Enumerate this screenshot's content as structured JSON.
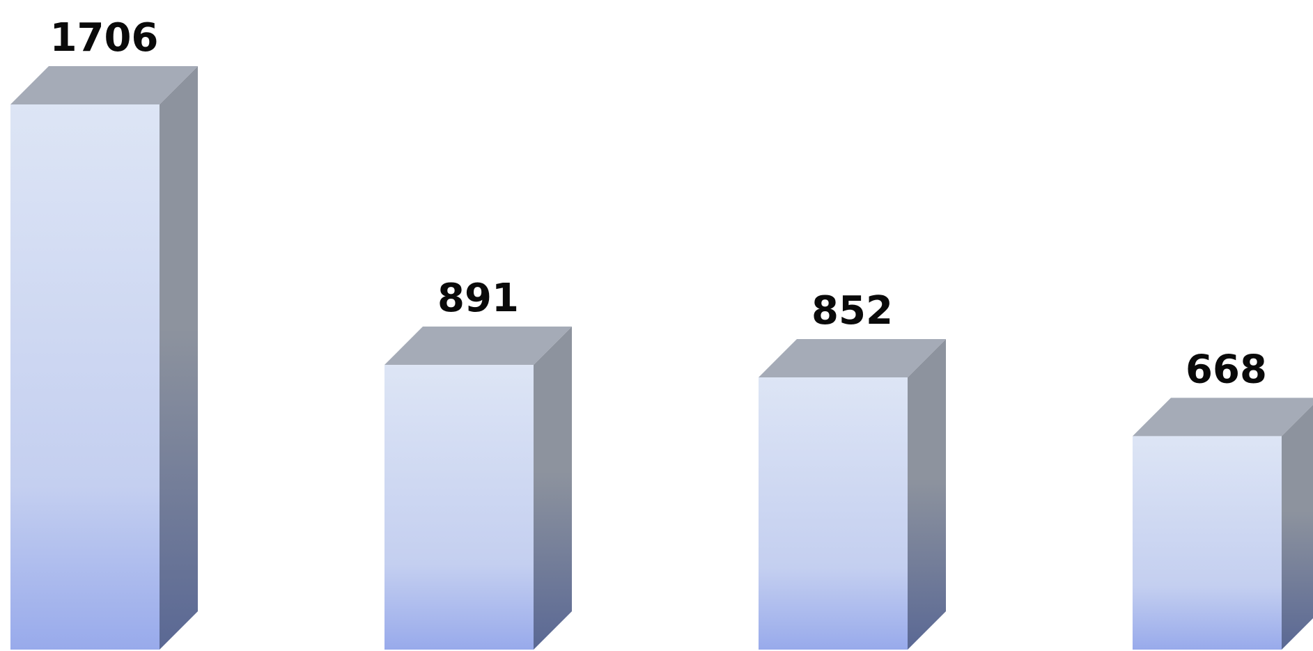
{
  "chart_data": {
    "type": "bar",
    "style": "3d-column",
    "categories": [
      "",
      "",
      "",
      ""
    ],
    "values": [
      1706,
      891,
      852,
      668
    ],
    "data_labels": [
      "1706",
      "891",
      "852",
      "668"
    ],
    "title": "",
    "xlabel": "",
    "ylabel": "",
    "ylim": [
      0,
      1706
    ],
    "grid": false,
    "legend": "none",
    "colors": {
      "front_top": "#dde5f5",
      "front_mid": "#c4cff0",
      "front_bottom": "#98aaeb",
      "side_top": "#8d939e",
      "side_bottom": "#5a6894",
      "top_face": "#a5abb7"
    }
  }
}
